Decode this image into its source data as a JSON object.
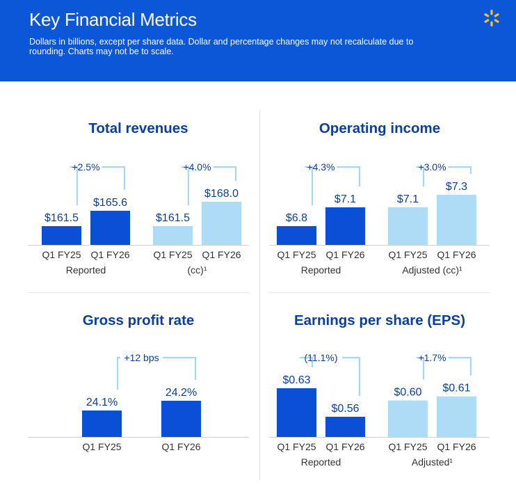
{
  "header": {
    "title": "Key Financial Metrics",
    "subtitle": "Dollars in billions, except per share data. Dollar and percentage changes may not recalculate due to rounding. Charts may not be to scale."
  },
  "colors": {
    "header_bg": "#0b57d8",
    "bar_dark": "#0b4fd6",
    "bar_light": "#aedcf7",
    "spark": "#ffc220",
    "title": "#0a3fa0"
  },
  "chart_data": [
    {
      "type": "bar",
      "title": "Total revenues",
      "groups": [
        {
          "label": "Reported",
          "change": "+2.5%",
          "bars": [
            {
              "category": "Q1 FY25",
              "value": 161.5,
              "label": "$161.5",
              "shade": "dark"
            },
            {
              "category": "Q1 FY26",
              "value": 165.6,
              "label": "$165.6",
              "shade": "dark"
            }
          ]
        },
        {
          "label": "(cc)¹",
          "change": "+4.0%",
          "bars": [
            {
              "category": "Q1 FY25",
              "value": 161.5,
              "label": "$161.5",
              "shade": "light"
            },
            {
              "category": "Q1 FY26",
              "value": 168.0,
              "label": "$168.0",
              "shade": "light"
            }
          ]
        }
      ]
    },
    {
      "type": "bar",
      "title": "Operating income",
      "groups": [
        {
          "label": "Reported",
          "change": "+4.3%",
          "bars": [
            {
              "category": "Q1 FY25",
              "value": 6.8,
              "label": "$6.8",
              "shade": "dark"
            },
            {
              "category": "Q1 FY26",
              "value": 7.1,
              "label": "$7.1",
              "shade": "dark"
            }
          ]
        },
        {
          "label": "Adjusted (cc)¹",
          "change": "+3.0%",
          "bars": [
            {
              "category": "Q1 FY25",
              "value": 7.1,
              "label": "$7.1",
              "shade": "light"
            },
            {
              "category": "Q1 FY26",
              "value": 7.3,
              "label": "$7.3",
              "shade": "light"
            }
          ]
        }
      ]
    },
    {
      "type": "bar",
      "title": "Gross profit rate",
      "groups": [
        {
          "label": "",
          "change": "+12 bps",
          "bars": [
            {
              "category": "Q1 FY25",
              "value": 24.1,
              "label": "24.1%",
              "shade": "dark"
            },
            {
              "category": "Q1 FY26",
              "value": 24.2,
              "label": "24.2%",
              "shade": "dark"
            }
          ]
        }
      ]
    },
    {
      "type": "bar",
      "title": "Earnings per share (EPS)",
      "groups": [
        {
          "label": "Reported",
          "change": "(11.1%)",
          "bars": [
            {
              "category": "Q1 FY25",
              "value": 0.63,
              "label": "$0.63",
              "shade": "dark"
            },
            {
              "category": "Q1 FY26",
              "value": 0.56,
              "label": "$0.56",
              "shade": "dark"
            }
          ]
        },
        {
          "label": "Adjusted¹",
          "change": "+1.7%",
          "bars": [
            {
              "category": "Q1 FY25",
              "value": 0.6,
              "label": "$0.60",
              "shade": "light"
            },
            {
              "category": "Q1 FY26",
              "value": 0.61,
              "label": "$0.61",
              "shade": "light"
            }
          ]
        }
      ]
    }
  ]
}
